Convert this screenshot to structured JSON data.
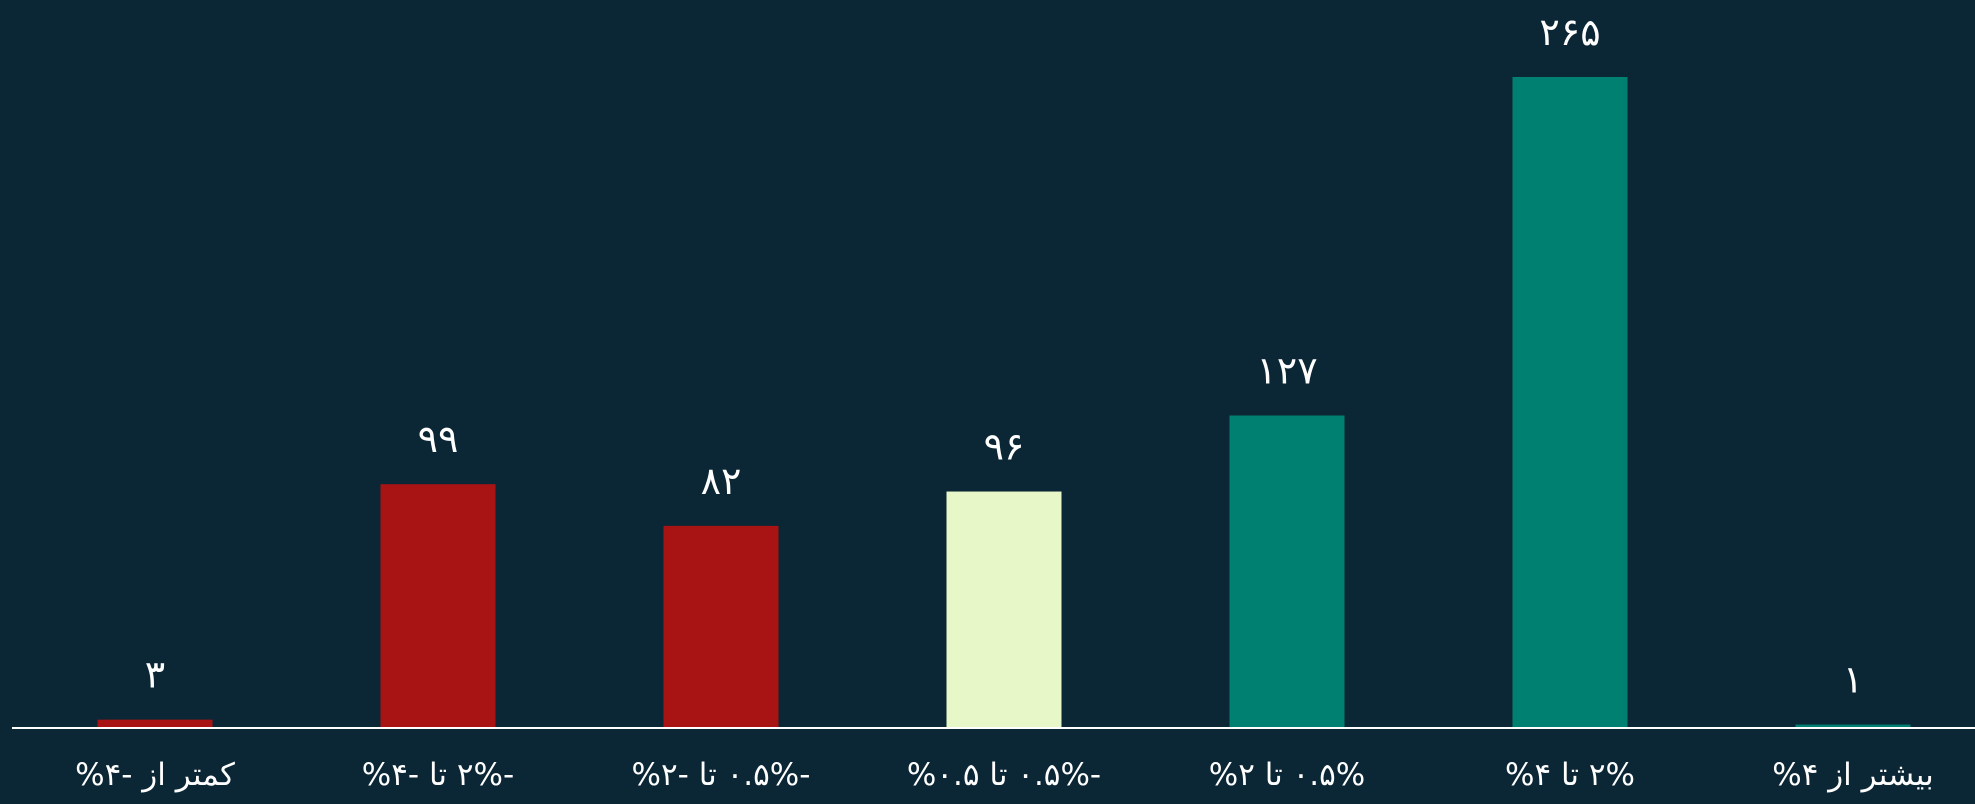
{
  "chart_data": {
    "type": "bar",
    "title": "",
    "xlabel": "",
    "ylabel": "",
    "categories": [
      "کمتر از -۴%",
      "-۲% تا -۴%",
      "-۰.۵% تا -۲%",
      "-۰.۵% تا ۰.۵%",
      "۰.۵% تا ۲%",
      "۲% تا ۴%",
      "بیشتر از ۴%"
    ],
    "values": [
      3,
      99,
      82,
      96,
      127,
      265,
      1
    ],
    "value_labels": [
      "۳",
      "۹۹",
      "۸۲",
      "۹۶",
      "۱۲۷",
      "۲۶۵",
      "۱"
    ],
    "bar_colors": [
      "#a81414",
      "#a81414",
      "#a81414",
      "#e8f7c8",
      "#008070",
      "#008070",
      "#008070"
    ],
    "ylim": [
      0,
      265
    ],
    "grid": false,
    "legend": "none"
  },
  "colors": {
    "background": "#0b2635",
    "axis": "#ffffff",
    "text": "#ffffff",
    "negative": "#a81414",
    "neutral": "#e8f7c8",
    "positive": "#008070"
  }
}
